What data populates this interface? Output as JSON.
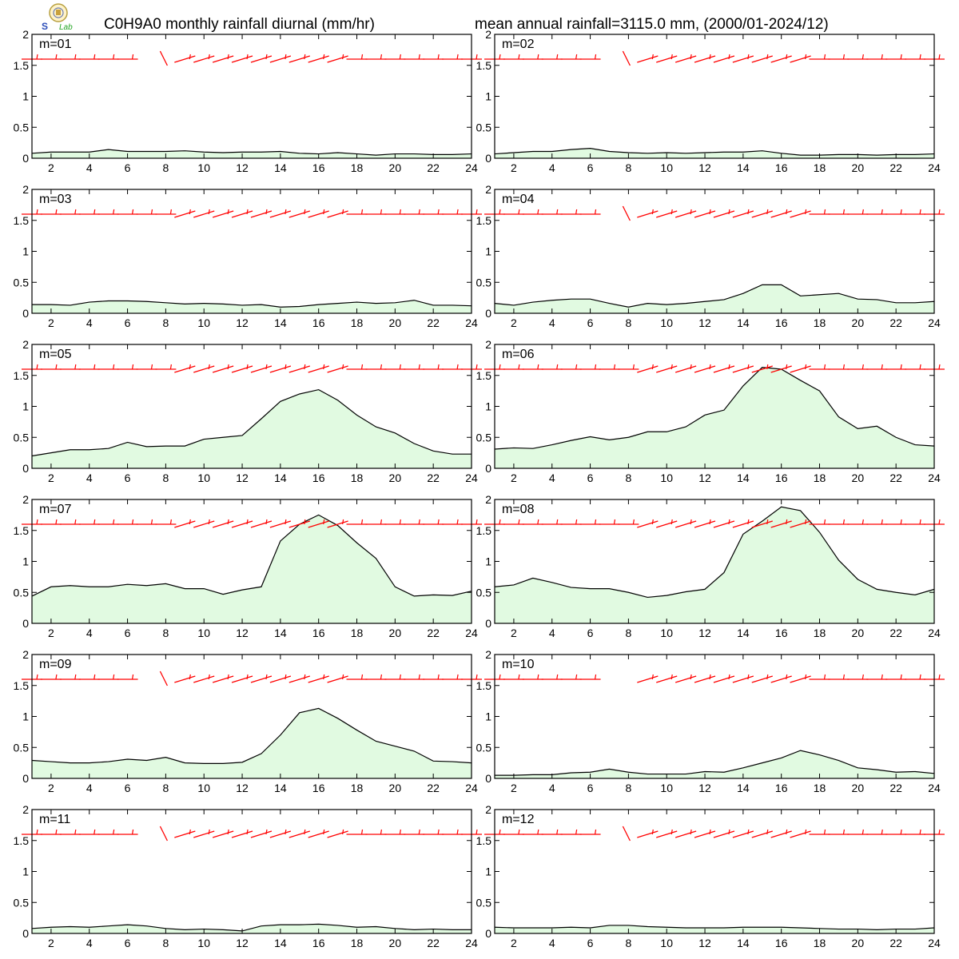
{
  "header": {
    "title": "C0H9A0 monthly rainfall diurnal (mm/hr)",
    "summary": "mean annual rainfall=3115.0 mm, (2000/01-2024/12)",
    "logo_text": "Lab"
  },
  "colors": {
    "fill": "#e1fae1",
    "line": "#000000",
    "wind": "#ff0000",
    "frame": "#000000"
  },
  "chart_data": {
    "type": "area",
    "x": [
      1,
      2,
      3,
      4,
      5,
      6,
      7,
      8,
      9,
      10,
      11,
      12,
      13,
      14,
      15,
      16,
      17,
      18,
      19,
      20,
      21,
      22,
      23,
      24
    ],
    "xticks": [
      "2",
      "4",
      "6",
      "8",
      "10",
      "12",
      "14",
      "16",
      "18",
      "20",
      "22",
      "24"
    ],
    "yticks": [
      "0",
      "0.5",
      "1",
      "1.5",
      "2"
    ],
    "ylim": [
      0,
      2
    ],
    "xlim": [
      1,
      24
    ],
    "panels": [
      {
        "label": "m=01",
        "values": [
          0.08,
          0.1,
          0.1,
          0.1,
          0.14,
          0.11,
          0.11,
          0.11,
          0.12,
          0.1,
          0.09,
          0.1,
          0.1,
          0.11,
          0.08,
          0.07,
          0.09,
          0.07,
          0.05,
          0.07,
          0.07,
          0.06,
          0.06,
          0.07
        ]
      },
      {
        "label": "m=02",
        "values": [
          0.07,
          0.09,
          0.11,
          0.11,
          0.14,
          0.16,
          0.11,
          0.09,
          0.08,
          0.09,
          0.08,
          0.09,
          0.1,
          0.1,
          0.12,
          0.08,
          0.05,
          0.05,
          0.06,
          0.06,
          0.05,
          0.06,
          0.06,
          0.07
        ]
      },
      {
        "label": "m=03",
        "values": [
          0.14,
          0.14,
          0.13,
          0.18,
          0.2,
          0.2,
          0.19,
          0.17,
          0.15,
          0.16,
          0.15,
          0.13,
          0.14,
          0.1,
          0.11,
          0.14,
          0.16,
          0.18,
          0.16,
          0.17,
          0.21,
          0.13,
          0.13,
          0.12
        ]
      },
      {
        "label": "m=04",
        "values": [
          0.16,
          0.13,
          0.18,
          0.21,
          0.23,
          0.23,
          0.16,
          0.1,
          0.16,
          0.14,
          0.16,
          0.19,
          0.22,
          0.32,
          0.46,
          0.46,
          0.28,
          0.3,
          0.32,
          0.23,
          0.22,
          0.17,
          0.17,
          0.19
        ]
      },
      {
        "label": "m=05",
        "values": [
          0.2,
          0.25,
          0.3,
          0.3,
          0.32,
          0.42,
          0.35,
          0.36,
          0.36,
          0.47,
          0.5,
          0.53,
          0.8,
          1.08,
          1.2,
          1.27,
          1.1,
          0.86,
          0.67,
          0.57,
          0.4,
          0.28,
          0.23,
          0.23
        ]
      },
      {
        "label": "m=06",
        "values": [
          0.31,
          0.33,
          0.32,
          0.38,
          0.45,
          0.51,
          0.46,
          0.5,
          0.59,
          0.59,
          0.67,
          0.86,
          0.94,
          1.33,
          1.63,
          1.6,
          1.42,
          1.25,
          0.83,
          0.64,
          0.68,
          0.5,
          0.38,
          0.36
        ]
      },
      {
        "label": "m=07",
        "values": [
          0.44,
          0.59,
          0.61,
          0.59,
          0.59,
          0.63,
          0.61,
          0.64,
          0.56,
          0.56,
          0.47,
          0.54,
          0.59,
          1.33,
          1.6,
          1.75,
          1.58,
          1.3,
          1.05,
          0.59,
          0.44,
          0.46,
          0.45,
          0.52
        ]
      },
      {
        "label": "m=08",
        "values": [
          0.59,
          0.62,
          0.73,
          0.66,
          0.58,
          0.56,
          0.56,
          0.5,
          0.42,
          0.45,
          0.51,
          0.55,
          0.82,
          1.44,
          1.65,
          1.88,
          1.82,
          1.47,
          1.02,
          0.71,
          0.55,
          0.5,
          0.46,
          0.55
        ]
      },
      {
        "label": "m=09",
        "values": [
          0.29,
          0.27,
          0.25,
          0.25,
          0.27,
          0.31,
          0.29,
          0.34,
          0.25,
          0.24,
          0.24,
          0.26,
          0.4,
          0.7,
          1.06,
          1.13,
          0.97,
          0.78,
          0.6,
          0.52,
          0.44,
          0.28,
          0.27,
          0.25
        ]
      },
      {
        "label": "m=10",
        "values": [
          0.05,
          0.05,
          0.06,
          0.06,
          0.09,
          0.1,
          0.15,
          0.1,
          0.07,
          0.07,
          0.07,
          0.11,
          0.1,
          0.17,
          0.25,
          0.33,
          0.45,
          0.38,
          0.29,
          0.17,
          0.14,
          0.1,
          0.11,
          0.08
        ]
      },
      {
        "label": "m=11",
        "values": [
          0.08,
          0.1,
          0.11,
          0.1,
          0.12,
          0.14,
          0.12,
          0.08,
          0.06,
          0.07,
          0.06,
          0.04,
          0.12,
          0.14,
          0.14,
          0.15,
          0.13,
          0.1,
          0.11,
          0.08,
          0.06,
          0.07,
          0.06,
          0.06
        ]
      },
      {
        "label": "m=12",
        "values": [
          0.1,
          0.09,
          0.09,
          0.09,
          0.1,
          0.09,
          0.13,
          0.13,
          0.11,
          0.1,
          0.09,
          0.09,
          0.09,
          0.1,
          0.1,
          0.1,
          0.09,
          0.08,
          0.07,
          0.07,
          0.06,
          0.07,
          0.07,
          0.09
        ]
      }
    ]
  }
}
